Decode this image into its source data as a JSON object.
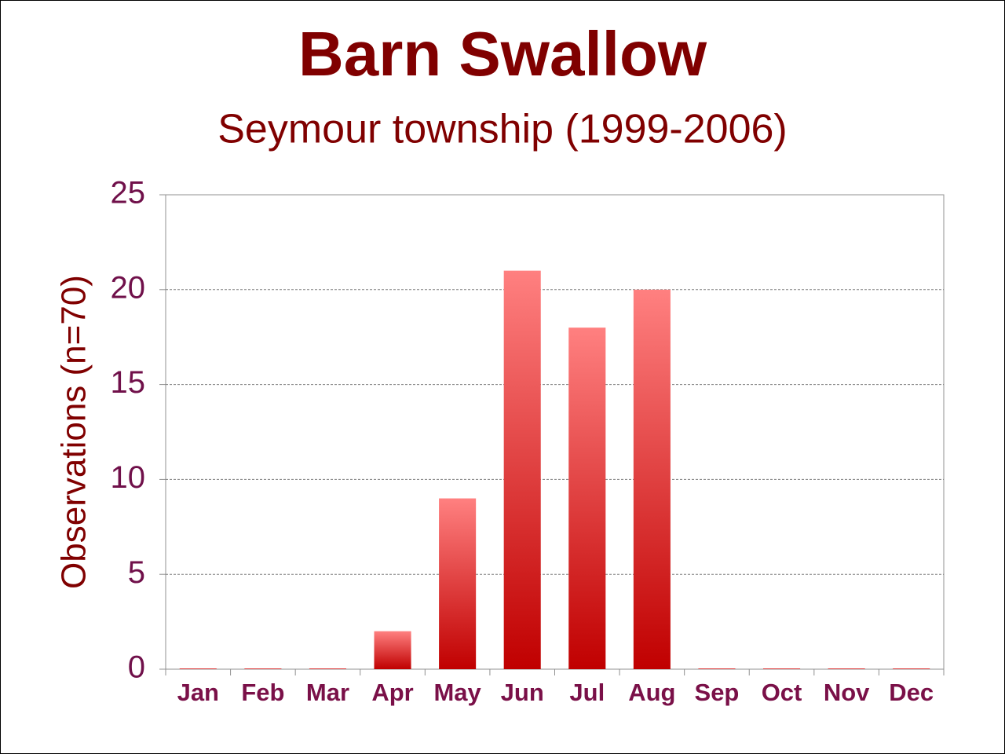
{
  "chart_data": {
    "type": "bar",
    "title": "Barn Swallow",
    "subtitle": "Seymour township (1999-2006)",
    "y_label": "Observations (n=70)",
    "categories": [
      "Jan",
      "Feb",
      "Mar",
      "Apr",
      "May",
      "Jun",
      "Jul",
      "Aug",
      "Sep",
      "Oct",
      "Nov",
      "Dec"
    ],
    "values": [
      0,
      0,
      0,
      2,
      9,
      21,
      18,
      20,
      0,
      0,
      0,
      0
    ],
    "color": "#c00000",
    "gradient_top": "#ff8080",
    "ylim": [
      0,
      25
    ],
    "yticks": [
      0,
      5,
      10,
      15,
      20,
      25
    ],
    "grid": true
  }
}
